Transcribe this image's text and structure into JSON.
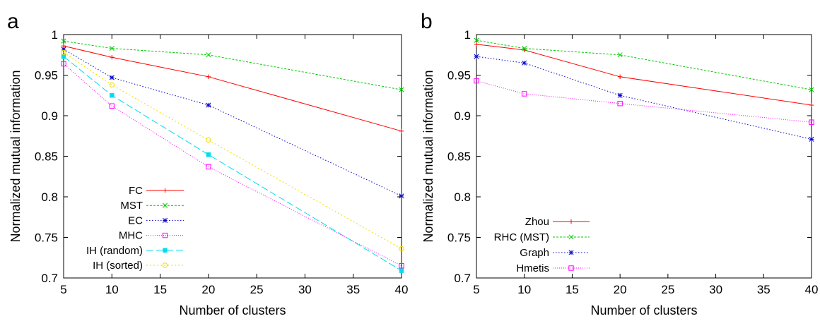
{
  "figure": {
    "panels": [
      {
        "label": "a",
        "chart_data": {
          "type": "line",
          "x": [
            5,
            10,
            20,
            40
          ],
          "xlabel": "Number of clusters",
          "ylabel": "Normalized mutual information",
          "xlim": [
            5,
            40
          ],
          "ylim": [
            0.7,
            1.0
          ],
          "x_ticks": [
            "5",
            "10",
            "15",
            "20",
            "25",
            "30",
            "35",
            "40"
          ],
          "y_ticks": [
            "0.7",
            "0.75",
            "0.8",
            "0.85",
            "0.9",
            "0.95",
            "1"
          ],
          "grid": false,
          "legend_position": "bottom-left",
          "series": [
            {
              "name": "FC",
              "values": [
                0.986,
                0.972,
                0.948,
                0.881
              ],
              "color": "#ff0000",
              "dash": "",
              "marker": "plus"
            },
            {
              "name": "MST",
              "values": [
                0.992,
                0.983,
                0.975,
                0.932
              ],
              "color": "#00cc00",
              "dash": "3,2",
              "marker": "x"
            },
            {
              "name": "EC",
              "values": [
                0.982,
                0.947,
                0.913,
                0.801
              ],
              "color": "#0000cc",
              "dash": "1.5,2.5",
              "marker": "star"
            },
            {
              "name": "MHC",
              "values": [
                0.964,
                0.912,
                0.837,
                0.715
              ],
              "color": "#ff00ff",
              "dash": "1,2",
              "marker": "square-open"
            },
            {
              "name": "IH (random)",
              "values": [
                0.973,
                0.925,
                0.852,
                0.709
              ],
              "color": "#00ddee",
              "dash": "10,4",
              "marker": "square-filled"
            },
            {
              "name": "IH (sorted)",
              "values": [
                0.978,
                0.938,
                0.87,
                0.736
              ],
              "color": "#f0dc00",
              "dash": "2,3",
              "marker": "circle-open"
            }
          ]
        }
      },
      {
        "label": "b",
        "chart_data": {
          "type": "line",
          "x": [
            5,
            10,
            20,
            40
          ],
          "xlabel": "Number of clusters",
          "ylabel": "Normalized mutual information",
          "xlim": [
            5,
            40
          ],
          "ylim": [
            0.7,
            1.0
          ],
          "x_ticks": [
            "5",
            "10",
            "15",
            "20",
            "25",
            "30",
            "35",
            "40"
          ],
          "y_ticks": [
            "0.7",
            "0.75",
            "0.8",
            "0.85",
            "0.9",
            "0.95",
            "1"
          ],
          "grid": false,
          "legend_position": "bottom-left",
          "series": [
            {
              "name": "Zhou",
              "values": [
                0.988,
                0.981,
                0.948,
                0.913
              ],
              "color": "#ff0000",
              "dash": "",
              "marker": "plus"
            },
            {
              "name": "RHC (MST)",
              "values": [
                0.993,
                0.983,
                0.975,
                0.932
              ],
              "color": "#00cc00",
              "dash": "3,2",
              "marker": "x"
            },
            {
              "name": "Graph",
              "values": [
                0.973,
                0.965,
                0.925,
                0.871
              ],
              "color": "#0000cc",
              "dash": "1.5,2.5",
              "marker": "star"
            },
            {
              "name": "Hmetis",
              "values": [
                0.943,
                0.927,
                0.915,
                0.892
              ],
              "color": "#ff00ff",
              "dash": "1,2",
              "marker": "square-open"
            }
          ]
        }
      }
    ]
  }
}
